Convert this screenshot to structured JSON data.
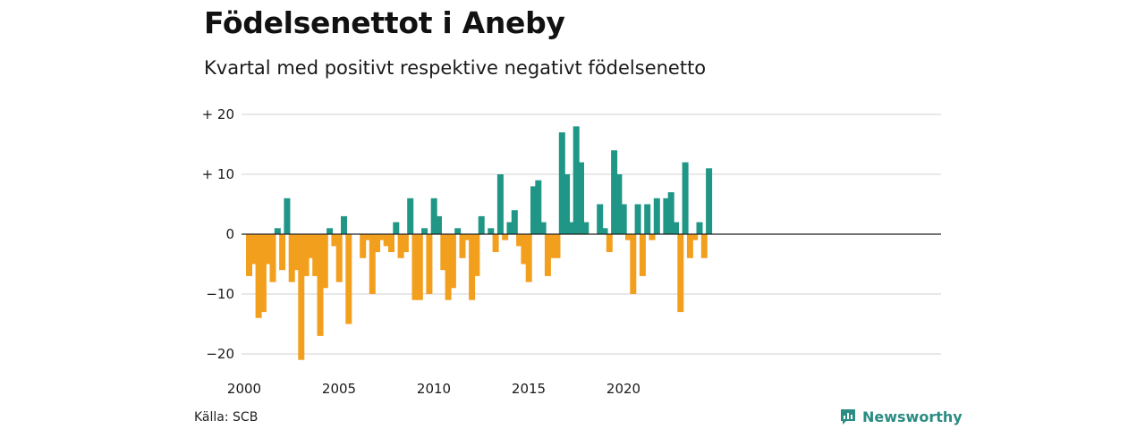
{
  "title": "Födelsenettot i Aneby",
  "subtitle": "Kvartal med positivt respektive negativt födelsenetto",
  "source": "Källa: SCB",
  "brand": "Newsworthy",
  "colors": {
    "positive": "#1f9686",
    "negative": "#f29f1e",
    "grid": "#d9d9d9",
    "brand": "#2a8c82"
  },
  "chart_data": {
    "type": "bar",
    "y_ticks": [
      20,
      10,
      0,
      -10,
      -20
    ],
    "y_tick_labels": [
      "+ 20",
      "+ 10",
      "0",
      "−10",
      "−20"
    ],
    "x_ticks": [
      "2000",
      "2005",
      "2010",
      "2015",
      "2020"
    ],
    "ylim": [
      -21,
      20
    ],
    "grid": true,
    "categories": [
      "2000 Q1",
      "2000 Q2",
      "2000 Q3",
      "2000 Q4",
      "2001 Q1",
      "2001 Q2",
      "2001 Q3",
      "2001 Q4",
      "2002 Q1",
      "2002 Q2",
      "2002 Q3",
      "2002 Q4",
      "2003 Q1",
      "2003 Q2",
      "2003 Q3",
      "2003 Q4",
      "2004 Q1",
      "2004 Q2",
      "2004 Q3",
      "2004 Q4",
      "2005 Q1",
      "2005 Q2",
      "2005 Q3",
      "2005 Q4",
      "2006 Q1",
      "2006 Q2",
      "2006 Q3",
      "2006 Q4",
      "2007 Q1",
      "2007 Q2",
      "2007 Q3",
      "2007 Q4",
      "2008 Q1",
      "2008 Q2",
      "2008 Q3",
      "2008 Q4",
      "2009 Q1",
      "2009 Q2",
      "2009 Q3",
      "2009 Q4",
      "2010 Q1",
      "2010 Q2",
      "2010 Q3",
      "2010 Q4",
      "2011 Q1",
      "2011 Q2",
      "2011 Q3",
      "2011 Q4",
      "2012 Q1",
      "2012 Q2",
      "2012 Q3",
      "2012 Q4",
      "2013 Q1",
      "2013 Q2",
      "2013 Q3",
      "2013 Q4",
      "2014 Q1",
      "2014 Q2",
      "2014 Q3",
      "2014 Q4",
      "2015 Q1",
      "2015 Q2",
      "2015 Q3",
      "2015 Q4",
      "2016 Q1",
      "2016 Q2",
      "2016 Q3",
      "2016 Q4",
      "2017 Q1",
      "2017 Q2",
      "2017 Q3",
      "2017 Q4",
      "2018 Q1",
      "2018 Q2",
      "2018 Q3",
      "2018 Q4",
      "2019 Q1",
      "2019 Q2",
      "2019 Q3",
      "2019 Q4",
      "2020 Q1",
      "2020 Q2",
      "2020 Q3",
      "2020 Q4",
      "2021 Q1",
      "2021 Q2",
      "2021 Q3",
      "2021 Q4",
      "2022 Q1",
      "2022 Q2",
      "2022 Q3",
      "2022 Q4",
      "2023 Q1",
      "2023 Q2",
      "2023 Q3",
      "2023 Q4",
      "2024 Q1",
      "2024 Q2",
      "2024 Q3"
    ],
    "values": [
      -7,
      -5,
      -14,
      -13,
      -5,
      -8,
      1,
      -6,
      6,
      -8,
      -6,
      -21,
      -7,
      -4,
      -7,
      -17,
      -9,
      1,
      -2,
      -8,
      3,
      -15,
      0,
      0,
      -4,
      -1,
      -10,
      -3,
      -1,
      -2,
      -3,
      2,
      -4,
      -3,
      6,
      -11,
      -11,
      1,
      -10,
      6,
      3,
      -6,
      -11,
      -9,
      1,
      -4,
      -1,
      -11,
      -7,
      3,
      0,
      1,
      -3,
      10,
      -1,
      2,
      4,
      -2,
      -5,
      -8,
      8,
      9,
      2,
      -7,
      -4,
      -4,
      17,
      10,
      2,
      18,
      12,
      2,
      0,
      0,
      5,
      1,
      -3,
      14,
      10,
      5,
      -1,
      -10,
      5,
      -7,
      5,
      -1,
      6,
      0,
      6,
      7,
      2,
      -13,
      12,
      -4,
      -1,
      2,
      -4,
      11,
      0
    ]
  }
}
